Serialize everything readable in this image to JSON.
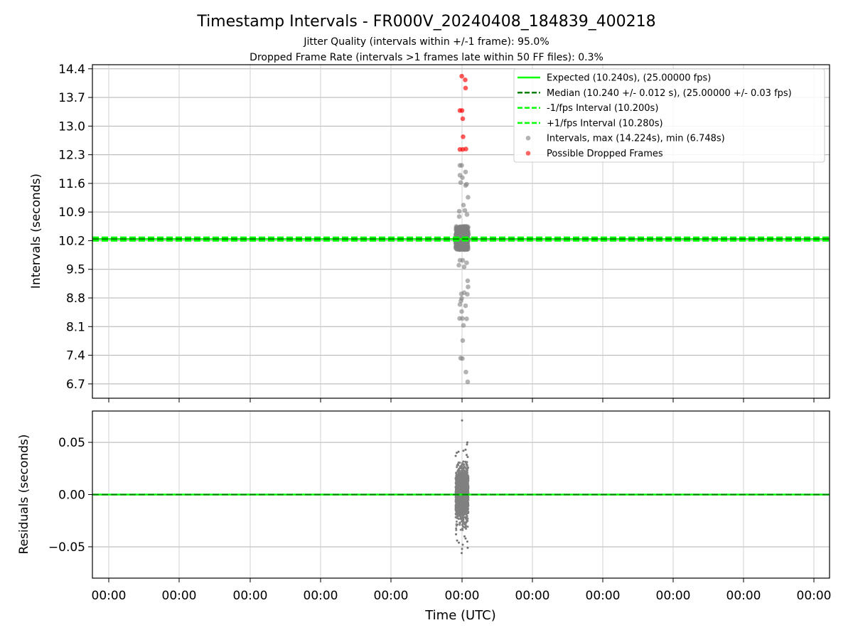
{
  "title": "Timestamp Intervals - FR000V_20240408_184839_400218",
  "subtitle_1": "Jitter Quality (intervals within +/-1 frame): 95.0%",
  "subtitle_2": "Dropped Frame Rate (intervals >1 frames late within 50 FF files): 0.3%",
  "colors": {
    "expected": "#00ff00",
    "median": "#008000",
    "interval_band": "#00ff00",
    "points": "#808080",
    "dropped": "#ff0000",
    "grid": "#b0b0b0"
  },
  "chart_data": [
    {
      "type": "scatter",
      "ylabel": "Intervals (seconds)",
      "xlabel": "",
      "x_tick_labels": [
        "00:00",
        "00:00",
        "00:00",
        "00:00",
        "00:00",
        "00:00",
        "00:00",
        "00:00",
        "00:00",
        "00:00",
        "00:00"
      ],
      "y_ticks": [
        6.7,
        7.4,
        8.1,
        8.8,
        9.5,
        10.2,
        10.9,
        11.6,
        12.3,
        13.0,
        13.7,
        14.4
      ],
      "y_tick_labels": [
        "6.7",
        "7.4",
        "8.1",
        "8.8",
        "9.5",
        "10.2",
        "10.9",
        "11.6",
        "12.3",
        "13.0",
        "13.7",
        "14.4"
      ],
      "ylim": [
        6.35,
        14.5
      ],
      "grid": true,
      "legend_position": "top-right",
      "legend": [
        "Expected (10.240s), (25.00000 fps)",
        "Median (10.240 +/- 0.012 s), (25.00000 +/- 0.03 fps)",
        "-1/fps Interval (10.200s)",
        "+1/fps Interval (10.280s)",
        "Intervals, max (14.224s), min (6.748s)",
        "Possible Dropped Frames"
      ],
      "reference_lines": {
        "expected": 10.24,
        "median": 10.24,
        "lower": 10.2,
        "upper": 10.28
      },
      "dropped_points": [
        [
          -0.004,
          14.22
        ],
        [
          0.045,
          14.13
        ],
        [
          0.05,
          13.93
        ],
        [
          -0.03,
          13.38
        ],
        [
          0.0,
          13.38
        ],
        [
          0.01,
          13.18
        ],
        [
          0.015,
          12.74
        ],
        [
          -0.03,
          12.43
        ],
        [
          0.01,
          12.43
        ],
        [
          0.055,
          12.44
        ]
      ],
      "interval_points": [
        [
          -0.03,
          12.04
        ],
        [
          -0.005,
          12.04
        ],
        [
          0.05,
          11.88
        ],
        [
          -0.03,
          11.8
        ],
        [
          0.005,
          11.74
        ],
        [
          -0.02,
          11.62
        ],
        [
          0.065,
          11.58
        ],
        [
          0.05,
          11.55
        ],
        [
          0.085,
          11.26
        ],
        [
          0.02,
          11.07
        ],
        [
          0.04,
          10.94
        ],
        [
          -0.04,
          10.92
        ],
        [
          -0.04,
          10.79
        ],
        [
          0.07,
          10.84
        ],
        [
          -0.03,
          9.72
        ],
        [
          0.01,
          9.72
        ],
        [
          0.065,
          9.66
        ],
        [
          -0.045,
          9.6
        ],
        [
          0.03,
          9.56
        ],
        [
          0.08,
          9.22
        ],
        [
          0.085,
          9.07
        ],
        [
          0.03,
          8.93
        ],
        [
          -0.01,
          8.9
        ],
        [
          0.075,
          8.89
        ],
        [
          -0.005,
          8.79
        ],
        [
          -0.015,
          8.73
        ],
        [
          0.05,
          8.61
        ],
        [
          -0.03,
          8.64
        ],
        [
          -0.005,
          8.47
        ],
        [
          -0.035,
          8.3
        ],
        [
          0.005,
          8.3
        ],
        [
          0.065,
          8.29
        ],
        [
          0.02,
          8.13
        ],
        [
          0.01,
          7.76
        ],
        [
          -0.02,
          7.33
        ],
        [
          0.005,
          7.32
        ],
        [
          0.055,
          6.99
        ],
        [
          0.08,
          6.75
        ]
      ],
      "dense_cluster": {
        "x_range": [
          -0.09,
          0.09
        ],
        "y_range": [
          9.98,
          10.55
        ]
      }
    },
    {
      "type": "scatter",
      "ylabel": "Residuals (seconds)",
      "xlabel": "Time (UTC)",
      "x_tick_labels": [
        "00:00",
        "00:00",
        "00:00",
        "00:00",
        "00:00",
        "00:00",
        "00:00",
        "00:00",
        "00:00",
        "00:00",
        "00:00"
      ],
      "y_ticks": [
        -0.05,
        0.0,
        0.05
      ],
      "y_tick_labels": [
        "−0.05",
        "0.00",
        "0.05"
      ],
      "ylim": [
        -0.08,
        0.08
      ],
      "grid": true,
      "reference_lines": {
        "expected": 0.0,
        "median": 0.0
      },
      "outlier_points": [
        [
          0.0,
          0.071
        ],
        [
          0.075,
          0.05
        ],
        [
          0.07,
          0.048
        ],
        [
          -0.05,
          0.041
        ],
        [
          0.02,
          0.042
        ],
        [
          0.05,
          0.043
        ],
        [
          -0.075,
          0.04
        ],
        [
          0.065,
          0.038
        ],
        [
          -0.09,
          0.037
        ],
        [
          0.08,
          0.036
        ],
        [
          -0.045,
          -0.046
        ],
        [
          0.01,
          -0.048
        ],
        [
          0.075,
          -0.045
        ],
        [
          -0.07,
          -0.044
        ],
        [
          0.05,
          -0.042
        ],
        [
          0.0,
          -0.052
        ],
        [
          0.08,
          -0.051
        ],
        [
          -0.005,
          -0.056
        ],
        [
          0.035,
          -0.04
        ],
        [
          -0.085,
          -0.038
        ]
      ],
      "dense_cluster": {
        "x_range": [
          -0.09,
          0.09
        ],
        "y_range": [
          -0.034,
          0.032
        ]
      }
    }
  ]
}
